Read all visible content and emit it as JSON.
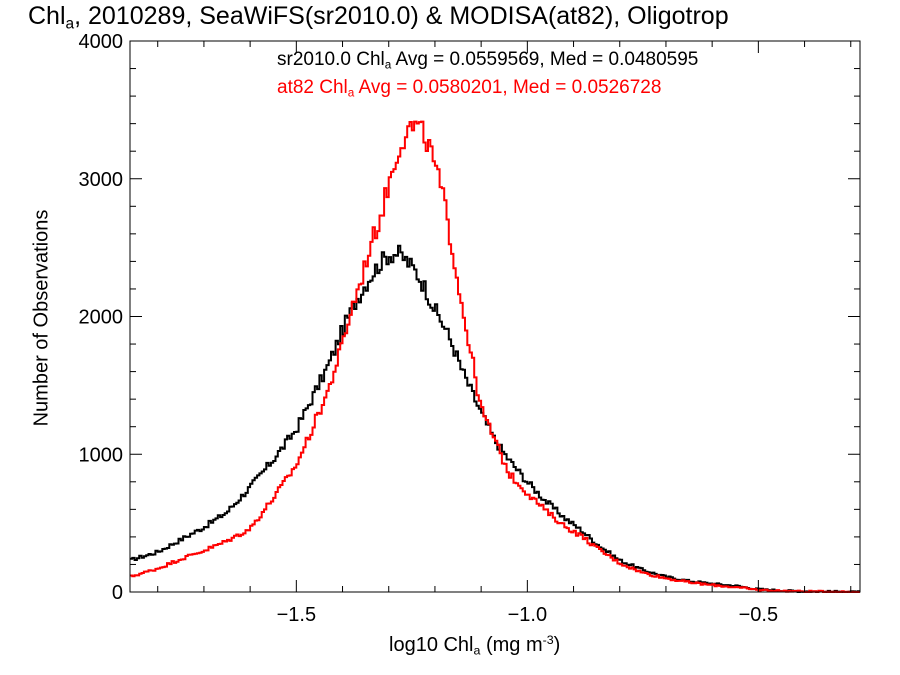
{
  "title": {
    "pre": "Chl",
    "sub": "a",
    "post": ", 2010289, SeaWiFS(sr2010.0) & MODISA(at82), Oligotrop"
  },
  "legend": [
    {
      "pre": "sr2010.0 Chl",
      "sub": "a",
      "post": " Avg = 0.0559569, Med = 0.0480595",
      "color": "#000000"
    },
    {
      "pre": "at82 Chl",
      "sub": "a",
      "post": " Avg = 0.0580201, Med = 0.0526728",
      "color": "#ff0000"
    }
  ],
  "axes": {
    "x": {
      "pre": "log10 Chl",
      "sub": "a",
      "mid": " (mg m",
      "sup": "-3",
      "post": ")"
    },
    "y": {
      "label": "Number of Observations"
    }
  },
  "chart_data": {
    "type": "line",
    "step": true,
    "xlim": [
      -1.86,
      -0.28
    ],
    "ylim": [
      0,
      4000
    ],
    "xticks": [
      -1.5,
      -1.0,
      -0.5
    ],
    "xtick_labels": [
      "−1.5",
      "−1.0",
      "−0.5"
    ],
    "yticks": [
      0,
      1000,
      2000,
      3000,
      4000
    ],
    "ytick_labels": [
      "0",
      "1000",
      "2000",
      "3000",
      "4000"
    ],
    "series": [
      {
        "name": "sr2010.0",
        "color": "#000000",
        "points": [
          [
            -1.86,
            230
          ],
          [
            -1.8,
            290
          ],
          [
            -1.75,
            380
          ],
          [
            -1.7,
            470
          ],
          [
            -1.65,
            580
          ],
          [
            -1.6,
            760
          ],
          [
            -1.55,
            960
          ],
          [
            -1.5,
            1180
          ],
          [
            -1.47,
            1380
          ],
          [
            -1.43,
            1650
          ],
          [
            -1.4,
            1900
          ],
          [
            -1.37,
            2120
          ],
          [
            -1.34,
            2290
          ],
          [
            -1.32,
            2380
          ],
          [
            -1.3,
            2450
          ],
          [
            -1.28,
            2460
          ],
          [
            -1.26,
            2400
          ],
          [
            -1.24,
            2320
          ],
          [
            -1.22,
            2200
          ],
          [
            -1.2,
            2050
          ],
          [
            -1.18,
            1930
          ],
          [
            -1.16,
            1780
          ],
          [
            -1.14,
            1600
          ],
          [
            -1.12,
            1450
          ],
          [
            -1.1,
            1300
          ],
          [
            -1.07,
            1100
          ],
          [
            -1.04,
            960
          ],
          [
            -1.0,
            800
          ],
          [
            -0.96,
            660
          ],
          [
            -0.92,
            540
          ],
          [
            -0.88,
            440
          ],
          [
            -0.85,
            350
          ],
          [
            -0.8,
            230
          ],
          [
            -0.75,
            160
          ],
          [
            -0.7,
            110
          ],
          [
            -0.65,
            80
          ],
          [
            -0.6,
            60
          ],
          [
            -0.55,
            45
          ],
          [
            -0.5,
            20
          ],
          [
            -0.45,
            10
          ],
          [
            -0.4,
            5
          ],
          [
            -0.28,
            0
          ]
        ]
      },
      {
        "name": "at82",
        "color": "#ff0000",
        "points": [
          [
            -1.86,
            110
          ],
          [
            -1.8,
            170
          ],
          [
            -1.75,
            240
          ],
          [
            -1.7,
            300
          ],
          [
            -1.65,
            370
          ],
          [
            -1.6,
            460
          ],
          [
            -1.55,
            680
          ],
          [
            -1.5,
            920
          ],
          [
            -1.47,
            1150
          ],
          [
            -1.43,
            1470
          ],
          [
            -1.4,
            1800
          ],
          [
            -1.38,
            2060
          ],
          [
            -1.36,
            2260
          ],
          [
            -1.34,
            2510
          ],
          [
            -1.32,
            2700
          ],
          [
            -1.3,
            2960
          ],
          [
            -1.28,
            3210
          ],
          [
            -1.26,
            3360
          ],
          [
            -1.24,
            3380
          ],
          [
            -1.22,
            3300
          ],
          [
            -1.2,
            3100
          ],
          [
            -1.18,
            2830
          ],
          [
            -1.16,
            2450
          ],
          [
            -1.14,
            2050
          ],
          [
            -1.12,
            1700
          ],
          [
            -1.1,
            1330
          ],
          [
            -1.07,
            1100
          ],
          [
            -1.04,
            860
          ],
          [
            -1.0,
            720
          ],
          [
            -0.96,
            590
          ],
          [
            -0.92,
            480
          ],
          [
            -0.88,
            400
          ],
          [
            -0.85,
            320
          ],
          [
            -0.8,
            210
          ],
          [
            -0.75,
            140
          ],
          [
            -0.7,
            100
          ],
          [
            -0.65,
            70
          ],
          [
            -0.6,
            50
          ],
          [
            -0.55,
            35
          ],
          [
            -0.5,
            15
          ],
          [
            -0.45,
            8
          ],
          [
            -0.4,
            4
          ],
          [
            -0.28,
            0
          ]
        ]
      }
    ]
  }
}
